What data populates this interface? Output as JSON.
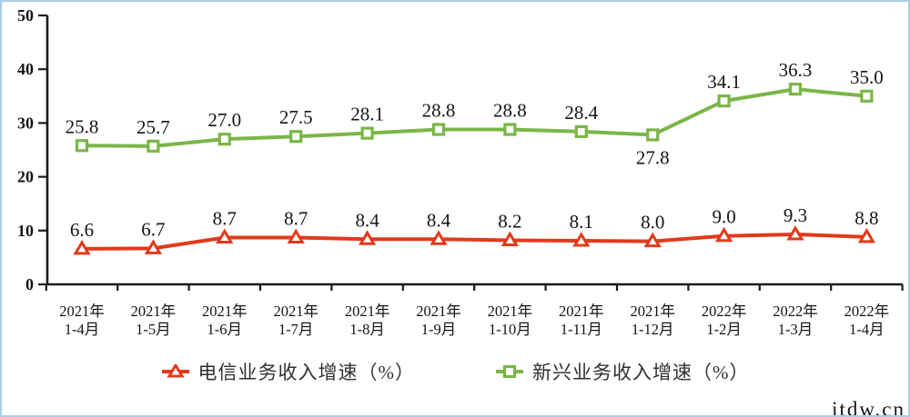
{
  "frame": {
    "border_color": "#a9cfe8",
    "background": "#ffffff"
  },
  "watermark": "itdw.cn",
  "legend": {
    "items": [
      {
        "key": "telecom",
        "label": "电信业务收入增速（%）",
        "color": "#e2391b",
        "marker": "triangle"
      },
      {
        "key": "emerging",
        "label": "新兴业务收入增速（%）",
        "color": "#7ab648",
        "marker": "square"
      }
    ]
  },
  "chart_data": {
    "type": "line",
    "title": "",
    "xlabel": "",
    "ylabel": "",
    "ylim": [
      0,
      50
    ],
    "yticks": [
      0,
      10,
      20,
      30,
      40,
      50
    ],
    "grid": false,
    "legend_position": "bottom",
    "categories": [
      [
        "2021年",
        "1-4月"
      ],
      [
        "2021年",
        "1-5月"
      ],
      [
        "2021年",
        "1-6月"
      ],
      [
        "2021年",
        "1-7月"
      ],
      [
        "2021年",
        "1-8月"
      ],
      [
        "2021年",
        "1-9月"
      ],
      [
        "2021年",
        "1-10月"
      ],
      [
        "2021年",
        "1-11月"
      ],
      [
        "2021年",
        "1-12月"
      ],
      [
        "2022年",
        "1-2月"
      ],
      [
        "2022年",
        "1-3月"
      ],
      [
        "2022年",
        "1-4月"
      ]
    ],
    "series": [
      {
        "key": "telecom",
        "name": "电信业务收入增速（%）",
        "color": "#e2391b",
        "marker": "triangle",
        "values": [
          6.6,
          6.7,
          8.7,
          8.7,
          8.4,
          8.4,
          8.2,
          8.1,
          8.0,
          9.0,
          9.3,
          8.8
        ],
        "labels_below": []
      },
      {
        "key": "emerging",
        "name": "新兴业务收入增速（%）",
        "color": "#7ab648",
        "marker": "square",
        "values": [
          25.8,
          25.7,
          27.0,
          27.5,
          28.1,
          28.8,
          28.8,
          28.4,
          27.8,
          34.1,
          36.3,
          35.0
        ],
        "labels_below": [
          8
        ]
      }
    ]
  }
}
